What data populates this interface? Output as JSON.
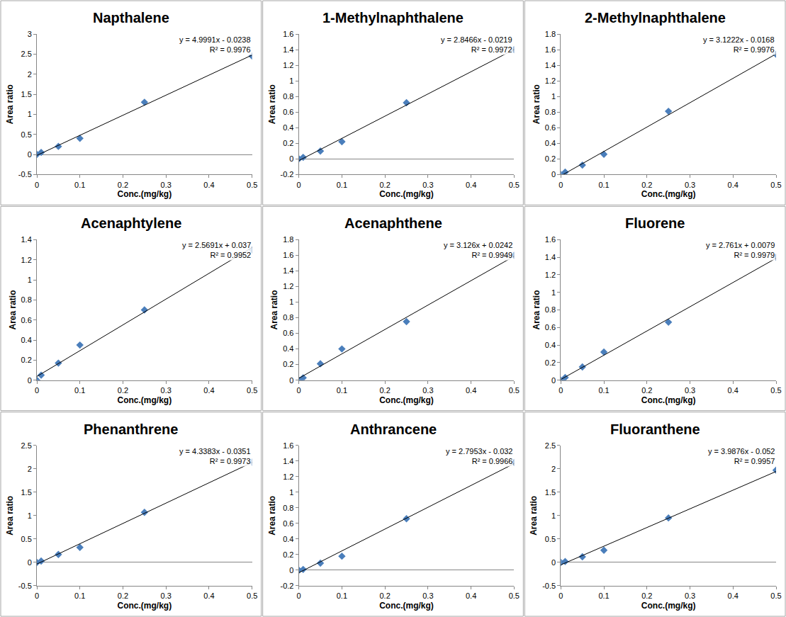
{
  "chart_data": [
    {
      "type": "scatter",
      "title": "Napthalene",
      "x_label": "Conc.(mg/kg)",
      "y_label": "Area ratio",
      "x": [
        0,
        0.01,
        0.05,
        0.1,
        0.25,
        0.5
      ],
      "values": [
        0,
        0.05,
        0.2,
        0.4,
        1.3,
        2.45
      ],
      "color": "#4a7ebb",
      "marker": "diamond",
      "grid": false,
      "xlim": [
        0,
        0.5
      ],
      "xticks": [
        0,
        0.1,
        0.2,
        0.3,
        0.4,
        0.5
      ],
      "ylim": [
        -0.5,
        3
      ],
      "yticks": [
        -0.5,
        0,
        0.5,
        1,
        1.5,
        2,
        2.5,
        3
      ],
      "trendline": {
        "slope": 4.9991,
        "intercept": -0.0238,
        "color": "#000000",
        "equation": "y = 4.9991x - 0.0238",
        "r2_label": "R² = 0.9976"
      }
    },
    {
      "type": "scatter",
      "title": "1-Methylnaphthalene",
      "x_label": "Conc.(mg/kg)",
      "y_label": "Area ratio",
      "x": [
        0,
        0.01,
        0.05,
        0.1,
        0.25,
        0.5
      ],
      "values": [
        0,
        0.02,
        0.1,
        0.22,
        0.72,
        1.4
      ],
      "color": "#4a7ebb",
      "marker": "diamond",
      "grid": false,
      "xlim": [
        0,
        0.5
      ],
      "xticks": [
        0,
        0.1,
        0.2,
        0.3,
        0.4,
        0.5
      ],
      "ylim": [
        -0.2,
        1.6
      ],
      "yticks": [
        -0.2,
        0,
        0.2,
        0.4,
        0.6,
        0.8,
        1,
        1.2,
        1.4,
        1.6
      ],
      "trendline": {
        "slope": 2.8466,
        "intercept": -0.0219,
        "color": "#000000",
        "equation": "y = 2.8466x - 0.0219",
        "r2_label": "R² = 0.9972"
      }
    },
    {
      "type": "scatter",
      "title": "2-Methylnaphthalene",
      "x_label": "Conc.(mg/kg)",
      "y_label": "Area ratio",
      "x": [
        0,
        0.01,
        0.05,
        0.1,
        0.25,
        0.5
      ],
      "values": [
        0,
        0.03,
        0.12,
        0.26,
        0.81,
        1.54
      ],
      "color": "#4a7ebb",
      "marker": "diamond",
      "grid": false,
      "xlim": [
        0,
        0.5
      ],
      "xticks": [
        0,
        0.1,
        0.2,
        0.3,
        0.4,
        0.5
      ],
      "ylim": [
        0,
        1.8
      ],
      "yticks": [
        0,
        0.2,
        0.4,
        0.6,
        0.8,
        1,
        1.2,
        1.4,
        1.6,
        1.8
      ],
      "trendline": {
        "slope": 3.1222,
        "intercept": -0.0168,
        "color": "#000000",
        "equation": "y = 3.1222x - 0.0168",
        "r2_label": "R² = 0.9976"
      }
    },
    {
      "type": "scatter",
      "title": "Acenaphtylene",
      "x_label": "Conc.(mg/kg)",
      "y_label": "Area ratio",
      "x": [
        0,
        0.01,
        0.05,
        0.1,
        0.25,
        0.5
      ],
      "values": [
        0,
        0.05,
        0.17,
        0.35,
        0.7,
        1.3
      ],
      "color": "#4a7ebb",
      "marker": "diamond",
      "grid": false,
      "xlim": [
        0,
        0.5
      ],
      "xticks": [
        0,
        0.1,
        0.2,
        0.3,
        0.4,
        0.5
      ],
      "ylim": [
        0,
        1.4
      ],
      "yticks": [
        0,
        0.2,
        0.4,
        0.6,
        0.8,
        1,
        1.2,
        1.4
      ],
      "trendline": {
        "slope": 2.5691,
        "intercept": 0.037,
        "color": "#000000",
        "equation": "y = 2.5691x + 0.037",
        "r2_label": "R² = 0.9952"
      }
    },
    {
      "type": "scatter",
      "title": "Acenaphthene",
      "x_label": "Conc.(mg/kg)",
      "y_label": "Area ratio",
      "x": [
        0,
        0.01,
        0.05,
        0.1,
        0.25,
        0.5
      ],
      "values": [
        0,
        0.03,
        0.21,
        0.4,
        0.75,
        1.6
      ],
      "color": "#4a7ebb",
      "marker": "diamond",
      "grid": false,
      "xlim": [
        0,
        0.5
      ],
      "xticks": [
        0,
        0.1,
        0.2,
        0.3,
        0.4,
        0.5
      ],
      "ylim": [
        0,
        1.8
      ],
      "yticks": [
        0,
        0.2,
        0.4,
        0.6,
        0.8,
        1,
        1.2,
        1.4,
        1.6,
        1.8
      ],
      "trendline": {
        "slope": 3.126,
        "intercept": 0.0242,
        "color": "#000000",
        "equation": "y = 3.126x + 0.0242",
        "r2_label": "R² = 0.9949"
      }
    },
    {
      "type": "scatter",
      "title": "Fluorene",
      "x_label": "Conc.(mg/kg)",
      "y_label": "Area ratio",
      "x": [
        0,
        0.01,
        0.05,
        0.1,
        0.25,
        0.5
      ],
      "values": [
        0,
        0.03,
        0.15,
        0.32,
        0.66,
        1.4
      ],
      "color": "#4a7ebb",
      "marker": "diamond",
      "grid": false,
      "xlim": [
        0,
        0.5
      ],
      "xticks": [
        0,
        0.1,
        0.2,
        0.3,
        0.4,
        0.5
      ],
      "ylim": [
        0,
        1.6
      ],
      "yticks": [
        0,
        0.2,
        0.4,
        0.6,
        0.8,
        1,
        1.2,
        1.4,
        1.6
      ],
      "trendline": {
        "slope": 2.761,
        "intercept": 0.0079,
        "color": "#000000",
        "equation": "y = 2.761x + 0.0079",
        "r2_label": "R² = 0.9979"
      }
    },
    {
      "type": "scatter",
      "title": "Phenanthrene",
      "x_label": "Conc.(mg/kg)",
      "y_label": "Area ratio",
      "x": [
        0,
        0.01,
        0.05,
        0.1,
        0.25,
        0.5
      ],
      "values": [
        0,
        0.03,
        0.17,
        0.32,
        1.07,
        2.14
      ],
      "color": "#4a7ebb",
      "marker": "diamond",
      "grid": false,
      "xlim": [
        0,
        0.5
      ],
      "xticks": [
        0,
        0.1,
        0.2,
        0.3,
        0.4,
        0.5
      ],
      "ylim": [
        -0.5,
        2.5
      ],
      "yticks": [
        -0.5,
        0,
        0.5,
        1,
        1.5,
        2,
        2.5
      ],
      "trendline": {
        "slope": 4.3383,
        "intercept": -0.0351,
        "color": "#000000",
        "equation": "y = 4.3383x - 0.0351",
        "r2_label": "R² = 0.9973"
      }
    },
    {
      "type": "scatter",
      "title": "Anthrancene",
      "x_label": "Conc.(mg/kg)",
      "y_label": "Area ratio",
      "x": [
        0,
        0.01,
        0.05,
        0.1,
        0.25,
        0.5
      ],
      "values": [
        0,
        0.01,
        0.09,
        0.18,
        0.66,
        1.38
      ],
      "color": "#4a7ebb",
      "marker": "diamond",
      "grid": false,
      "xlim": [
        0,
        0.5
      ],
      "xticks": [
        0,
        0.1,
        0.2,
        0.3,
        0.4,
        0.5
      ],
      "ylim": [
        -0.2,
        1.6
      ],
      "yticks": [
        -0.2,
        0,
        0.2,
        0.4,
        0.6,
        0.8,
        1,
        1.2,
        1.4,
        1.6
      ],
      "trendline": {
        "slope": 2.7953,
        "intercept": -0.032,
        "color": "#000000",
        "equation": "y = 2.7953x - 0.032",
        "r2_label": "R² = 0.9966"
      }
    },
    {
      "type": "scatter",
      "title": "Fluoranthene",
      "x_label": "Conc.(mg/kg)",
      "y_label": "Area ratio",
      "x": [
        0,
        0.01,
        0.05,
        0.1,
        0.25,
        0.5
      ],
      "values": [
        0,
        0.02,
        0.12,
        0.26,
        0.95,
        1.97
      ],
      "color": "#4a7ebb",
      "marker": "diamond",
      "grid": false,
      "xlim": [
        0,
        0.5
      ],
      "xticks": [
        0,
        0.1,
        0.2,
        0.3,
        0.4,
        0.5
      ],
      "ylim": [
        -0.5,
        2.5
      ],
      "yticks": [
        -0.5,
        0,
        0.5,
        1,
        1.5,
        2,
        2.5
      ],
      "trendline": {
        "slope": 3.9876,
        "intercept": -0.052,
        "color": "#000000",
        "equation": "y = 3.9876x - 0.052",
        "r2_label": "R² = 0.9957"
      }
    }
  ]
}
